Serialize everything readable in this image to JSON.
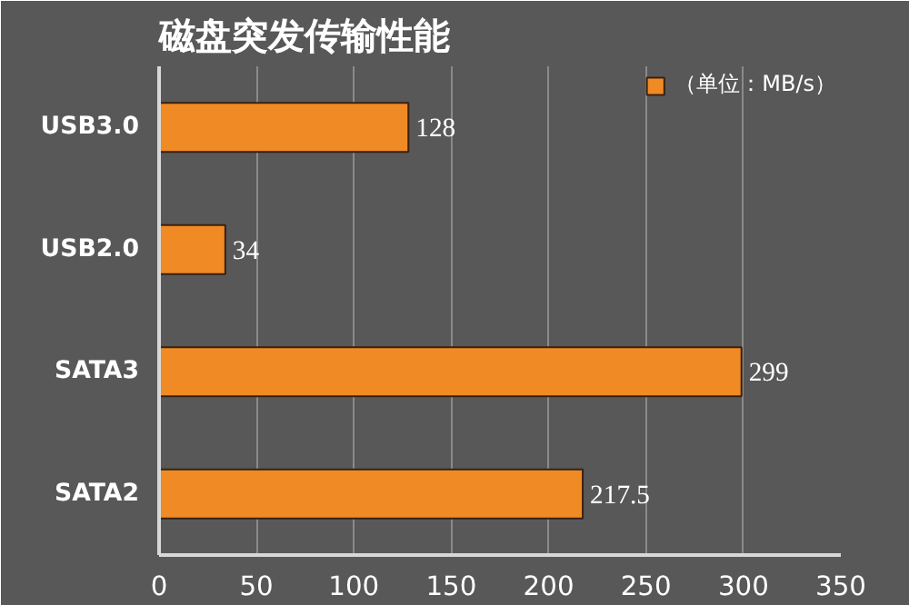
{
  "chart_data": {
    "type": "bar",
    "orientation": "horizontal",
    "title": "磁盘突发传输性能",
    "categories": [
      "USB3.0",
      "USB2.0",
      "SATA3",
      "SATA2"
    ],
    "series": [
      {
        "name": "（单位：MB/s）",
        "color": "#f08a24",
        "values": [
          128,
          34,
          299,
          217.5
        ]
      }
    ],
    "xlim": [
      0,
      350
    ],
    "xticks": [
      0,
      50,
      100,
      150,
      200,
      250,
      300,
      350
    ],
    "grid": "x",
    "legend": "top right",
    "data_labels": true
  }
}
